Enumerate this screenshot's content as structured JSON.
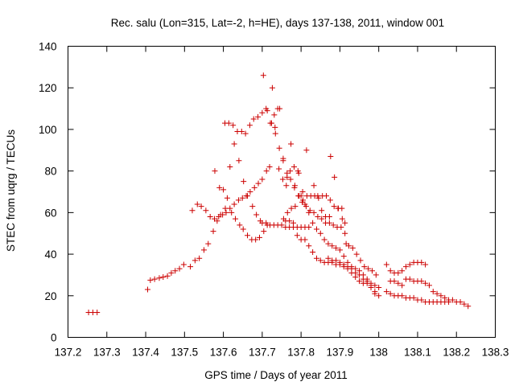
{
  "chart_data": {
    "type": "scatter",
    "title": "Rec. salu (Lon=315, Lat=-2, h=HE), days 137-138, 2011, window 001",
    "xlabel": "GPS time / Days of year 2011",
    "ylabel": "STEC from uqrg / TECUs",
    "xlim": [
      137.2,
      138.3
    ],
    "ylim": [
      0,
      140
    ],
    "xticks": [
      137.2,
      137.3,
      137.4,
      137.5,
      137.6,
      137.7,
      137.8,
      137.9,
      138,
      138.1,
      138.2,
      138.3
    ],
    "xtick_labels": [
      "137.2",
      "137.3",
      "137.4",
      "137.5",
      "137.6",
      "137.7",
      "137.8",
      "137.9",
      "138",
      "138.1",
      "138.2",
      "138.3"
    ],
    "yticks": [
      0,
      20,
      40,
      60,
      80,
      100,
      120,
      140
    ],
    "ytick_labels": [
      "0",
      "20",
      "40",
      "60",
      "80",
      "100",
      "120",
      "140"
    ],
    "grid": false,
    "legend": "none",
    "marker": "plus",
    "color": "#cc0000",
    "series": [
      {
        "points": [
          [
            137.253,
            12
          ],
          [
            137.264,
            12
          ],
          [
            137.275,
            12
          ],
          [
            137.405,
            23
          ],
          [
            137.412,
            27.5
          ],
          [
            137.423,
            28
          ],
          [
            137.435,
            28.5
          ],
          [
            137.445,
            29
          ],
          [
            137.456,
            29.5
          ],
          [
            137.466,
            31
          ],
          [
            137.476,
            32
          ],
          [
            137.487,
            33
          ],
          [
            137.498,
            35
          ],
          [
            137.515,
            34
          ],
          [
            137.527,
            37
          ],
          [
            137.538,
            38
          ],
          [
            137.55,
            42
          ],
          [
            137.561,
            45
          ],
          [
            137.574,
            51
          ],
          [
            137.584,
            56
          ],
          [
            137.593,
            59
          ],
          [
            137.605,
            62
          ],
          [
            137.617,
            62
          ],
          [
            137.628,
            64
          ],
          [
            137.639,
            66
          ],
          [
            137.649,
            67
          ],
          [
            137.659,
            68
          ],
          [
            137.669,
            70
          ],
          [
            137.68,
            72
          ],
          [
            137.69,
            74
          ],
          [
            137.7,
            76
          ],
          [
            137.711,
            80
          ],
          [
            137.719,
            82
          ],
          [
            137.52,
            61
          ],
          [
            137.533,
            64
          ],
          [
            137.543,
            63
          ],
          [
            137.555,
            61
          ],
          [
            137.566,
            58
          ],
          [
            137.577,
            57
          ],
          [
            137.588,
            58
          ],
          [
            137.598,
            59
          ],
          [
            137.607,
            60
          ],
          [
            137.578,
            80
          ],
          [
            137.59,
            72
          ],
          [
            137.6,
            71
          ],
          [
            137.61,
            67
          ],
          [
            137.621,
            60
          ],
          [
            137.631,
            57
          ],
          [
            137.642,
            54
          ],
          [
            137.651,
            52
          ],
          [
            137.662,
            49
          ],
          [
            137.673,
            47
          ],
          [
            137.683,
            47
          ],
          [
            137.693,
            48
          ],
          [
            137.704,
            51
          ],
          [
            137.713,
            54
          ],
          [
            137.604,
            103
          ],
          [
            137.614,
            103
          ],
          [
            137.625,
            102
          ],
          [
            137.636,
            99
          ],
          [
            137.647,
            99
          ],
          [
            137.657,
            98
          ],
          [
            137.668,
            102
          ],
          [
            137.678,
            105
          ],
          [
            137.689,
            106
          ],
          [
            137.7,
            108
          ],
          [
            137.71,
            110
          ],
          [
            137.721,
            103
          ],
          [
            137.731,
            107
          ],
          [
            137.74,
            110
          ],
          [
            137.617,
            82
          ],
          [
            137.628,
            93
          ],
          [
            137.64,
            85
          ],
          [
            137.652,
            75
          ],
          [
            137.662,
            68
          ],
          [
            137.675,
            63
          ],
          [
            137.685,
            59
          ],
          [
            137.695,
            56
          ],
          [
            137.703,
            126
          ],
          [
            137.713,
            109
          ],
          [
            137.724,
            103
          ],
          [
            137.734,
            98
          ],
          [
            137.744,
            91
          ],
          [
            137.754,
            85
          ],
          [
            137.764,
            79
          ],
          [
            137.773,
            76
          ],
          [
            137.783,
            72
          ],
          [
            137.793,
            68
          ],
          [
            137.803,
            65
          ],
          [
            137.813,
            63
          ],
          [
            137.823,
            61
          ],
          [
            137.833,
            60
          ],
          [
            137.843,
            58
          ],
          [
            137.853,
            57
          ],
          [
            137.863,
            55
          ],
          [
            137.873,
            55
          ],
          [
            137.726,
            120
          ],
          [
            137.733,
            101
          ],
          [
            137.743,
            81
          ],
          [
            137.753,
            76
          ],
          [
            137.762,
            73
          ],
          [
            137.772,
            80
          ],
          [
            137.782,
            82
          ],
          [
            137.792,
            80
          ],
          [
            137.745,
            110
          ],
          [
            137.754,
            86
          ],
          [
            137.764,
            77
          ],
          [
            137.774,
            93
          ],
          [
            137.784,
            73
          ],
          [
            137.794,
            79
          ],
          [
            137.804,
            70
          ],
          [
            137.814,
            90
          ],
          [
            137.7,
            55
          ],
          [
            137.71,
            55
          ],
          [
            137.72,
            54
          ],
          [
            137.73,
            54
          ],
          [
            137.74,
            54
          ],
          [
            137.75,
            54
          ],
          [
            137.76,
            53
          ],
          [
            137.77,
            53
          ],
          [
            137.78,
            53
          ],
          [
            137.79,
            53
          ],
          [
            137.8,
            53
          ],
          [
            137.81,
            53
          ],
          [
            137.82,
            53
          ],
          [
            137.755,
            57
          ],
          [
            137.765,
            60
          ],
          [
            137.775,
            62
          ],
          [
            137.785,
            63
          ],
          [
            137.795,
            68
          ],
          [
            137.805,
            66
          ],
          [
            137.815,
            68
          ],
          [
            137.825,
            68
          ],
          [
            137.835,
            68
          ],
          [
            137.845,
            67
          ],
          [
            137.855,
            68
          ],
          [
            137.865,
            68
          ],
          [
            137.875,
            66
          ],
          [
            137.885,
            63
          ],
          [
            137.895,
            62
          ],
          [
            137.905,
            62
          ],
          [
            137.913,
            55
          ],
          [
            137.76,
            56
          ],
          [
            137.77,
            56
          ],
          [
            137.78,
            55
          ],
          [
            137.79,
            49
          ],
          [
            137.8,
            47
          ],
          [
            137.81,
            47
          ],
          [
            137.82,
            44
          ],
          [
            137.83,
            41
          ],
          [
            137.84,
            38
          ],
          [
            137.85,
            37
          ],
          [
            137.86,
            36
          ],
          [
            137.87,
            36
          ],
          [
            137.88,
            36
          ],
          [
            137.89,
            35
          ],
          [
            137.9,
            35
          ],
          [
            137.91,
            34
          ],
          [
            137.92,
            33
          ],
          [
            137.93,
            31
          ],
          [
            137.94,
            29
          ],
          [
            137.95,
            27
          ],
          [
            137.96,
            26
          ],
          [
            137.97,
            26
          ],
          [
            137.98,
            24
          ],
          [
            137.99,
            22
          ],
          [
            137.8,
            68
          ],
          [
            137.81,
            64
          ],
          [
            137.82,
            60
          ],
          [
            137.83,
            55
          ],
          [
            137.84,
            52
          ],
          [
            137.85,
            50
          ],
          [
            137.86,
            47
          ],
          [
            137.87,
            45
          ],
          [
            137.88,
            44
          ],
          [
            137.89,
            43
          ],
          [
            137.9,
            42
          ],
          [
            137.91,
            39
          ],
          [
            137.92,
            36
          ],
          [
            137.93,
            34
          ],
          [
            137.94,
            33
          ],
          [
            137.95,
            32
          ],
          [
            137.96,
            30
          ],
          [
            137.97,
            28
          ],
          [
            137.98,
            26
          ],
          [
            137.99,
            25
          ],
          [
            138.0,
            24
          ],
          [
            137.833,
            73
          ],
          [
            137.843,
            68
          ],
          [
            137.853,
            61
          ],
          [
            137.863,
            58
          ],
          [
            137.873,
            58
          ],
          [
            137.883,
            54
          ],
          [
            137.893,
            53
          ],
          [
            137.903,
            53
          ],
          [
            137.913,
            50
          ],
          [
            137.923,
            44
          ],
          [
            137.933,
            43
          ],
          [
            137.943,
            40
          ],
          [
            137.953,
            37
          ],
          [
            137.963,
            34
          ],
          [
            137.973,
            33
          ],
          [
            137.983,
            32
          ],
          [
            137.993,
            30
          ],
          [
            137.876,
            87
          ],
          [
            137.886,
            77
          ],
          [
            137.896,
            62
          ],
          [
            137.906,
            57
          ],
          [
            137.916,
            45
          ],
          [
            137.87,
            38
          ],
          [
            137.88,
            37
          ],
          [
            137.89,
            37
          ],
          [
            137.9,
            36
          ],
          [
            137.91,
            35
          ],
          [
            137.92,
            34
          ],
          [
            137.93,
            33
          ],
          [
            137.94,
            31
          ],
          [
            137.95,
            30
          ],
          [
            137.96,
            28
          ],
          [
            137.97,
            27
          ],
          [
            137.98,
            25
          ],
          [
            137.99,
            21
          ],
          [
            138.0,
            20
          ],
          [
            138.02,
            35
          ],
          [
            138.03,
            32
          ],
          [
            138.04,
            31
          ],
          [
            138.05,
            31
          ],
          [
            138.06,
            32
          ],
          [
            138.07,
            34
          ],
          [
            138.08,
            35
          ],
          [
            138.09,
            36
          ],
          [
            138.1,
            36
          ],
          [
            138.11,
            36
          ],
          [
            138.12,
            35
          ],
          [
            138.03,
            27
          ],
          [
            138.04,
            27
          ],
          [
            138.05,
            26
          ],
          [
            138.06,
            25
          ],
          [
            138.07,
            28
          ],
          [
            138.08,
            28
          ],
          [
            138.09,
            27
          ],
          [
            138.1,
            27
          ],
          [
            138.11,
            27
          ],
          [
            138.12,
            26
          ],
          [
            138.13,
            25
          ],
          [
            138.14,
            22
          ],
          [
            138.15,
            21
          ],
          [
            138.16,
            20
          ],
          [
            138.17,
            19
          ],
          [
            138.18,
            18
          ],
          [
            138.19,
            18
          ],
          [
            138.2,
            17
          ],
          [
            138.21,
            17
          ],
          [
            138.22,
            16
          ],
          [
            138.23,
            15
          ],
          [
            138.02,
            22
          ],
          [
            138.03,
            21
          ],
          [
            138.04,
            20
          ],
          [
            138.05,
            20
          ],
          [
            138.06,
            20
          ],
          [
            138.07,
            19
          ],
          [
            138.08,
            19
          ],
          [
            138.09,
            19
          ],
          [
            138.1,
            18
          ],
          [
            138.11,
            18
          ],
          [
            138.12,
            17
          ],
          [
            138.13,
            17
          ],
          [
            138.14,
            17
          ],
          [
            138.15,
            17
          ],
          [
            138.16,
            17
          ],
          [
            138.17,
            17
          ],
          [
            138.18,
            17
          ]
        ]
      }
    ]
  }
}
